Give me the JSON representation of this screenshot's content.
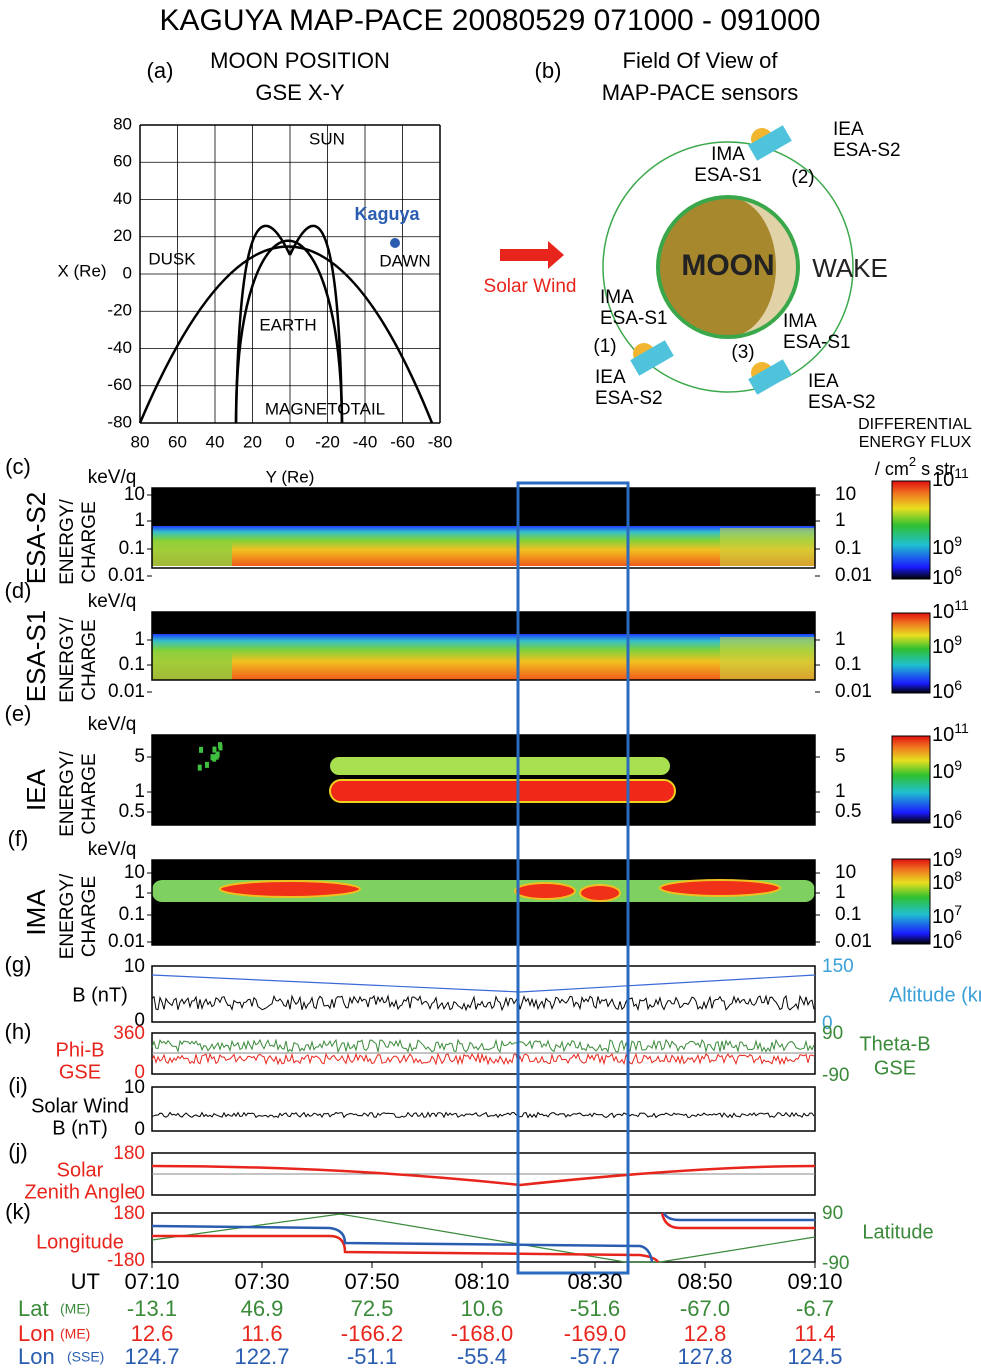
{
  "title": "KAGUYA MAP-PACE  20080529   071000 - 091000",
  "panel_a": {
    "label": "(a)",
    "title": [
      "MOON POSITION",
      "GSE X-Y"
    ],
    "y_axis_label": "X (Re)",
    "x_axis_label": "Y (Re)",
    "yticks": [
      "80",
      "60",
      "40",
      "20",
      "0",
      "-20",
      "-40",
      "-60",
      "-80"
    ],
    "xticks": [
      "80",
      "60",
      "40",
      "20",
      "0",
      "-20",
      "-40",
      "-60",
      "-80"
    ],
    "regions": {
      "sun": "SUN",
      "dusk": "DUSK",
      "dawn": "DAWN",
      "earth": "EARTH",
      "magnetotail": "MAGNETOTAIL"
    },
    "spacecraft": "Kaguya"
  },
  "panel_b": {
    "label": "(b)",
    "title": [
      "Field Of View of",
      "MAP-PACE sensors"
    ],
    "moon": "MOON",
    "wake": "WAKE",
    "solar_wind": "Solar Wind",
    "sensors": [
      [
        "IEA",
        "ESA-S2"
      ],
      [
        "IMA",
        "ESA-S1"
      ],
      [
        "IMA",
        "ESA-S1"
      ],
      [
        "IEA",
        "ESA-S2"
      ],
      [
        "IMA",
        "ESA-S1"
      ],
      [
        "IEA",
        "ESA-S2"
      ]
    ],
    "positions": [
      "(2)",
      "(1)",
      "(3)"
    ]
  },
  "flux_legend": {
    "lines": [
      "DIFFERENTIAL",
      "ENERGY FLUX"
    ],
    "unit": {
      "pre": "/ cm",
      "sup": "2",
      "post": " s str"
    }
  },
  "spectrograms": [
    {
      "label": "(c)",
      "unit": "keV/q",
      "sensor": "ESA-S2",
      "ylabel": [
        "ENERGY/",
        "CHARGE"
      ],
      "ticks": [
        "10",
        "1",
        "0.1",
        "0.01"
      ],
      "colorbar": [
        {
          "base": "10",
          "exp": "11"
        },
        {
          "base": "10",
          "exp": "9"
        },
        {
          "base": "10",
          "exp": "6"
        }
      ]
    },
    {
      "label": "(d)",
      "unit": "keV/q",
      "sensor": "ESA-S1",
      "ylabel": [
        "ENERGY/",
        "CHARGE"
      ],
      "ticks": [
        "1",
        "0.1",
        "0.01"
      ],
      "colorbar": [
        {
          "base": "10",
          "exp": "11"
        },
        {
          "base": "10",
          "exp": "9"
        },
        {
          "base": "10",
          "exp": "6"
        }
      ]
    },
    {
      "label": "(e)",
      "unit": "keV/q",
      "sensor": "IEA",
      "ylabel": [
        "ENERGY/",
        "CHARGE"
      ],
      "ticks": [
        "5",
        "1",
        "0.5"
      ],
      "colorbar": [
        {
          "base": "10",
          "exp": "11"
        },
        {
          "base": "10",
          "exp": "9"
        },
        {
          "base": "10",
          "exp": "6"
        }
      ]
    },
    {
      "label": "(f)",
      "unit": "keV/q",
      "sensor": "IMA",
      "ylabel": [
        "ENERGY/",
        "CHARGE"
      ],
      "ticks": [
        "10",
        "1",
        "0.1",
        "0.01"
      ],
      "colorbar": [
        {
          "base": "10",
          "exp": "9"
        },
        {
          "base": "10",
          "exp": "8"
        },
        {
          "base": "10",
          "exp": "7"
        },
        {
          "base": "10",
          "exp": "6"
        }
      ]
    }
  ],
  "line_panels": [
    {
      "label": "(g)",
      "left_label": [
        "B (nT)"
      ],
      "left_ticks": [
        "10",
        "0"
      ],
      "right_ticks": [
        "150",
        "0"
      ],
      "right_label": [
        "Altitude (km)"
      ]
    },
    {
      "label": "(h)",
      "left_label": [
        "Phi-B",
        "GSE"
      ],
      "left_ticks": [
        "360",
        "0"
      ],
      "right_ticks": [
        "90",
        "-90"
      ],
      "right_label": [
        "Theta-B",
        "GSE"
      ]
    },
    {
      "label": "(i)",
      "left_label": [
        "Solar Wind",
        "B (nT)"
      ],
      "left_ticks": [
        "10",
        "0"
      ]
    },
    {
      "label": "(j)",
      "left_label": [
        "Solar",
        "Zenith Angle"
      ],
      "left_ticks": [
        "180",
        "0"
      ]
    },
    {
      "label": "(k)",
      "left_label": [
        "Longitude"
      ],
      "left_ticks": [
        "180",
        "-180"
      ],
      "right_ticks": [
        "90",
        "-90"
      ],
      "right_label": [
        "Latitude"
      ]
    }
  ],
  "table": {
    "ut": "UT",
    "times": [
      "07:10",
      "07:30",
      "07:50",
      "08:10",
      "08:30",
      "08:50",
      "09:10"
    ],
    "rows": [
      {
        "name": "Lat",
        "sub": "(ME)",
        "values": [
          "-13.1",
          "46.9",
          "72.5",
          "10.6",
          "-51.6",
          "-67.0",
          "-6.7"
        ]
      },
      {
        "name": "Lon",
        "sub": "(ME)",
        "values": [
          "12.6",
          "11.6",
          "-166.2",
          "-168.0",
          "-169.0",
          "12.8",
          "11.4"
        ]
      },
      {
        "name": "Lon",
        "sub": "(SSE)",
        "values": [
          "124.7",
          "122.7",
          "-51.1",
          "-55.4",
          "-57.7",
          "127.8",
          "124.5"
        ]
      }
    ]
  }
}
